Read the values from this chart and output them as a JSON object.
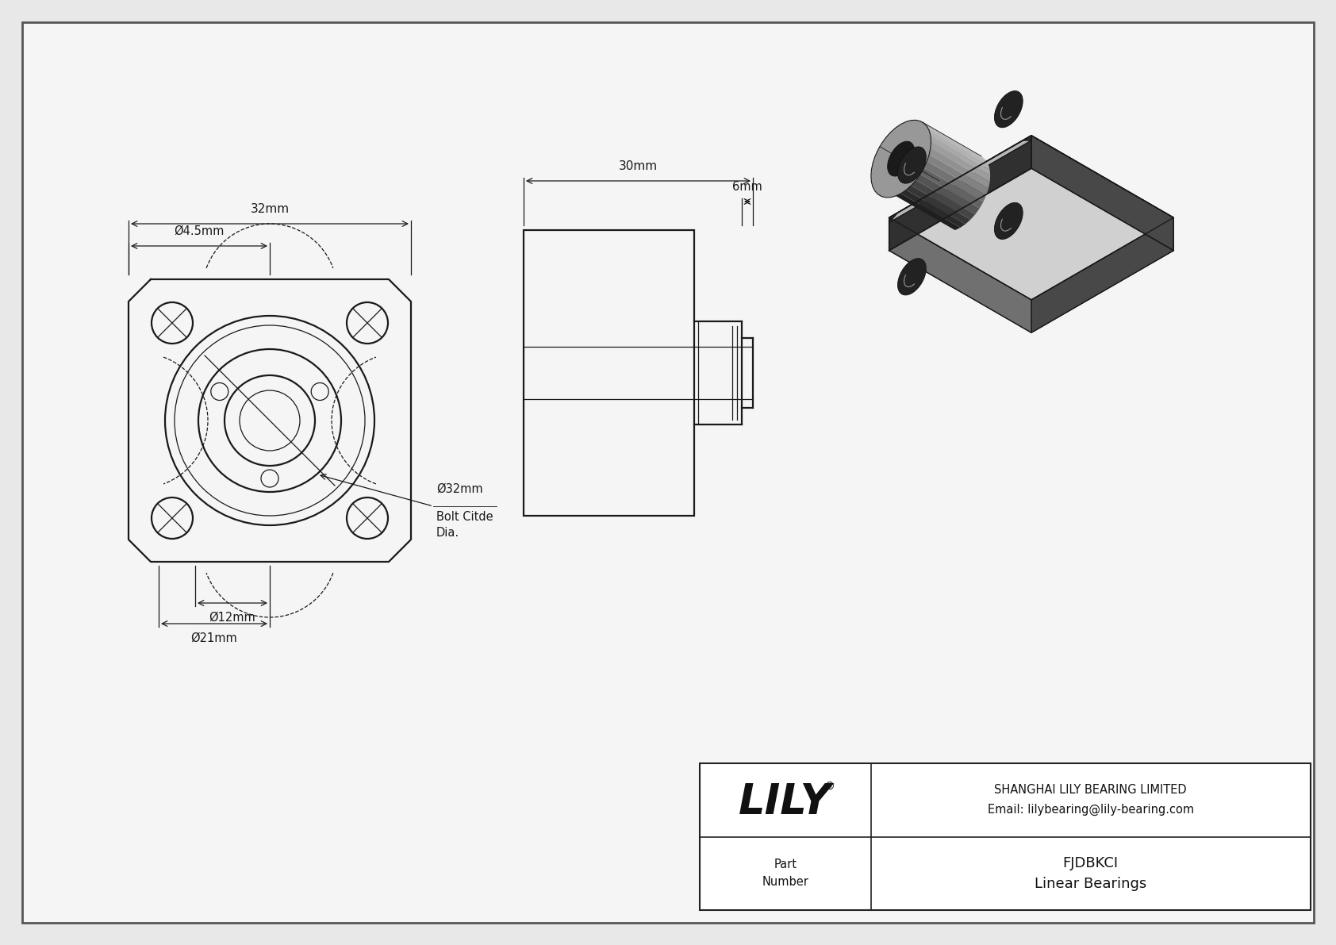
{
  "bg_color": "#e8e8e8",
  "paper_color": "#f5f5f5",
  "line_color": "#1a1a1a",
  "lw_main": 1.6,
  "lw_thin": 0.9,
  "lw_dim": 0.9,
  "dim_32mm": "32mm",
  "dim_4_5mm": "Ø4.5mm",
  "dim_30mm": "30mm",
  "dim_6mm": "6mm",
  "dim_12mm": "Ø12mm",
  "dim_21mm": "Ø21mm",
  "dim_32mm_bolt": "Ø32mm",
  "bolt_citde": "Bolt Citde",
  "dia_label": "Dia.",
  "title_company": "SHANGHAI LILY BEARING LIMITED",
  "title_email": "Email: lilybearing@lily-bearing.com",
  "part_label": "Part\nNumber",
  "part_name": "FJDBKCI",
  "part_type": "Linear Bearings",
  "brand": "LILY",
  "iso_face_darkest": "#303030",
  "iso_face_dark": "#484848",
  "iso_face_mid": "#707070",
  "iso_face_light": "#989898",
  "iso_face_lighter": "#b8b8b8",
  "iso_face_lightest": "#d0d0d0",
  "iso_edge": "#1a1a1a"
}
